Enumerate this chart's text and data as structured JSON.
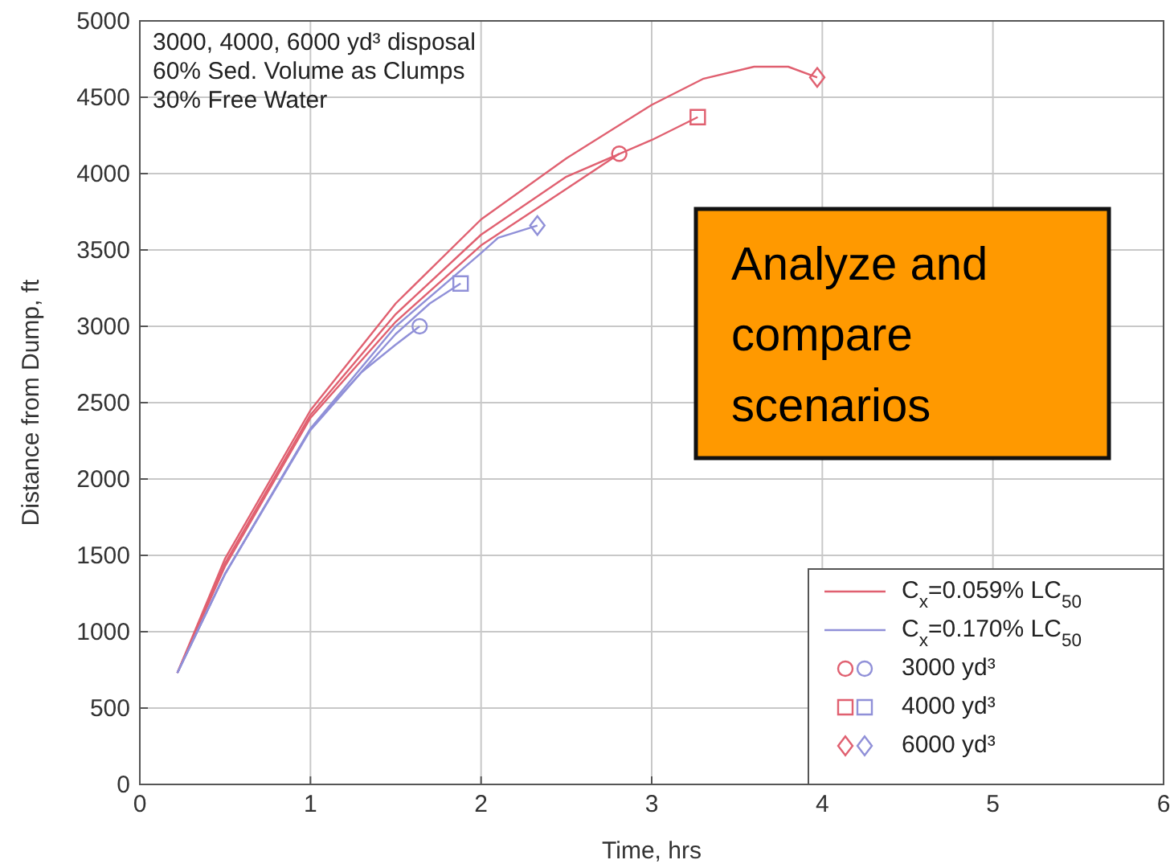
{
  "chart_data": {
    "type": "line",
    "xlabel": "Time, hrs",
    "ylabel": "Distance from Dump, ft",
    "xlim": [
      0,
      6
    ],
    "xticks": [
      0,
      1,
      2,
      3,
      4,
      5,
      6
    ],
    "ylim": [
      0,
      5000
    ],
    "yticks": [
      0,
      500,
      1000,
      1500,
      2000,
      2500,
      3000,
      3500,
      4000,
      4500,
      5000
    ],
    "grid": true,
    "legend": "bottom right",
    "marker": "none",
    "line_style": "solid",
    "annotations": [
      "3000, 4000, 6000 yd³ disposal",
      "60% Sed. Volume as Clumps",
      "30% Free Water",
      "Analyze and compare scenarios"
    ],
    "series": [
      {
        "name": "C$_{x}$=0.059% LC$_{50}$",
        "color": "#e06070",
        "x": [
          0.22,
          0.5,
          1,
          1.5,
          2,
          2.5,
          2.81
        ],
        "values": [
          730,
          1430,
          2400,
          3030,
          3530,
          3900,
          4130
        ]
      },
      {
        "color": "#e06070",
        "x": [
          0.22,
          0.5,
          1,
          1.5,
          2,
          2.5,
          3,
          3.27
        ],
        "values": [
          730,
          1450,
          2420,
          3080,
          3600,
          3980,
          4220,
          4370
        ]
      },
      {
        "color": "#e06070",
        "x": [
          0.22,
          0.5,
          1,
          1.5,
          2,
          2.5,
          3,
          3.3,
          3.6,
          3.8,
          3.97
        ],
        "values": [
          730,
          1480,
          2450,
          3150,
          3700,
          4100,
          4450,
          4620,
          4700,
          4700,
          4630
        ]
      },
      {
        "name": "C$_{x}$=0.170% LC$_{50}$",
        "color": "#9090d8",
        "x": [
          0.22,
          0.5,
          1,
          1.3,
          1.5,
          1.64
        ],
        "values": [
          730,
          1380,
          2320,
          2700,
          2880,
          3000
        ]
      },
      {
        "color": "#9090d8",
        "x": [
          0.22,
          0.5,
          1,
          1.5,
          1.7,
          1.88
        ],
        "values": [
          730,
          1380,
          2330,
          2950,
          3150,
          3280
        ]
      },
      {
        "color": "#9090d8",
        "x": [
          0.22,
          0.5,
          1,
          1.5,
          2,
          2.1,
          2.33
        ],
        "values": [
          730,
          1380,
          2330,
          3000,
          3480,
          3580,
          3660
        ]
      },
      {
        "name": "3000 yd³",
        "type": "scatter",
        "marker": "circle",
        "colors": [
          "#e06070",
          "#9090d8"
        ],
        "x": [
          2.81,
          1.64
        ],
        "values": [
          4130,
          3000
        ]
      },
      {
        "name": "4000 yd³",
        "type": "scatter",
        "marker": "square",
        "colors": [
          "#e06070",
          "#9090d8"
        ],
        "x": [
          3.27,
          1.88
        ],
        "values": [
          4370,
          3280
        ]
      },
      {
        "name": "6000 yd³",
        "type": "scatter",
        "marker": "diamond",
        "colors": [
          "#e06070",
          "#9090d8"
        ],
        "x": [
          3.97,
          2.33
        ],
        "values": [
          4630,
          3660
        ]
      }
    ]
  }
}
